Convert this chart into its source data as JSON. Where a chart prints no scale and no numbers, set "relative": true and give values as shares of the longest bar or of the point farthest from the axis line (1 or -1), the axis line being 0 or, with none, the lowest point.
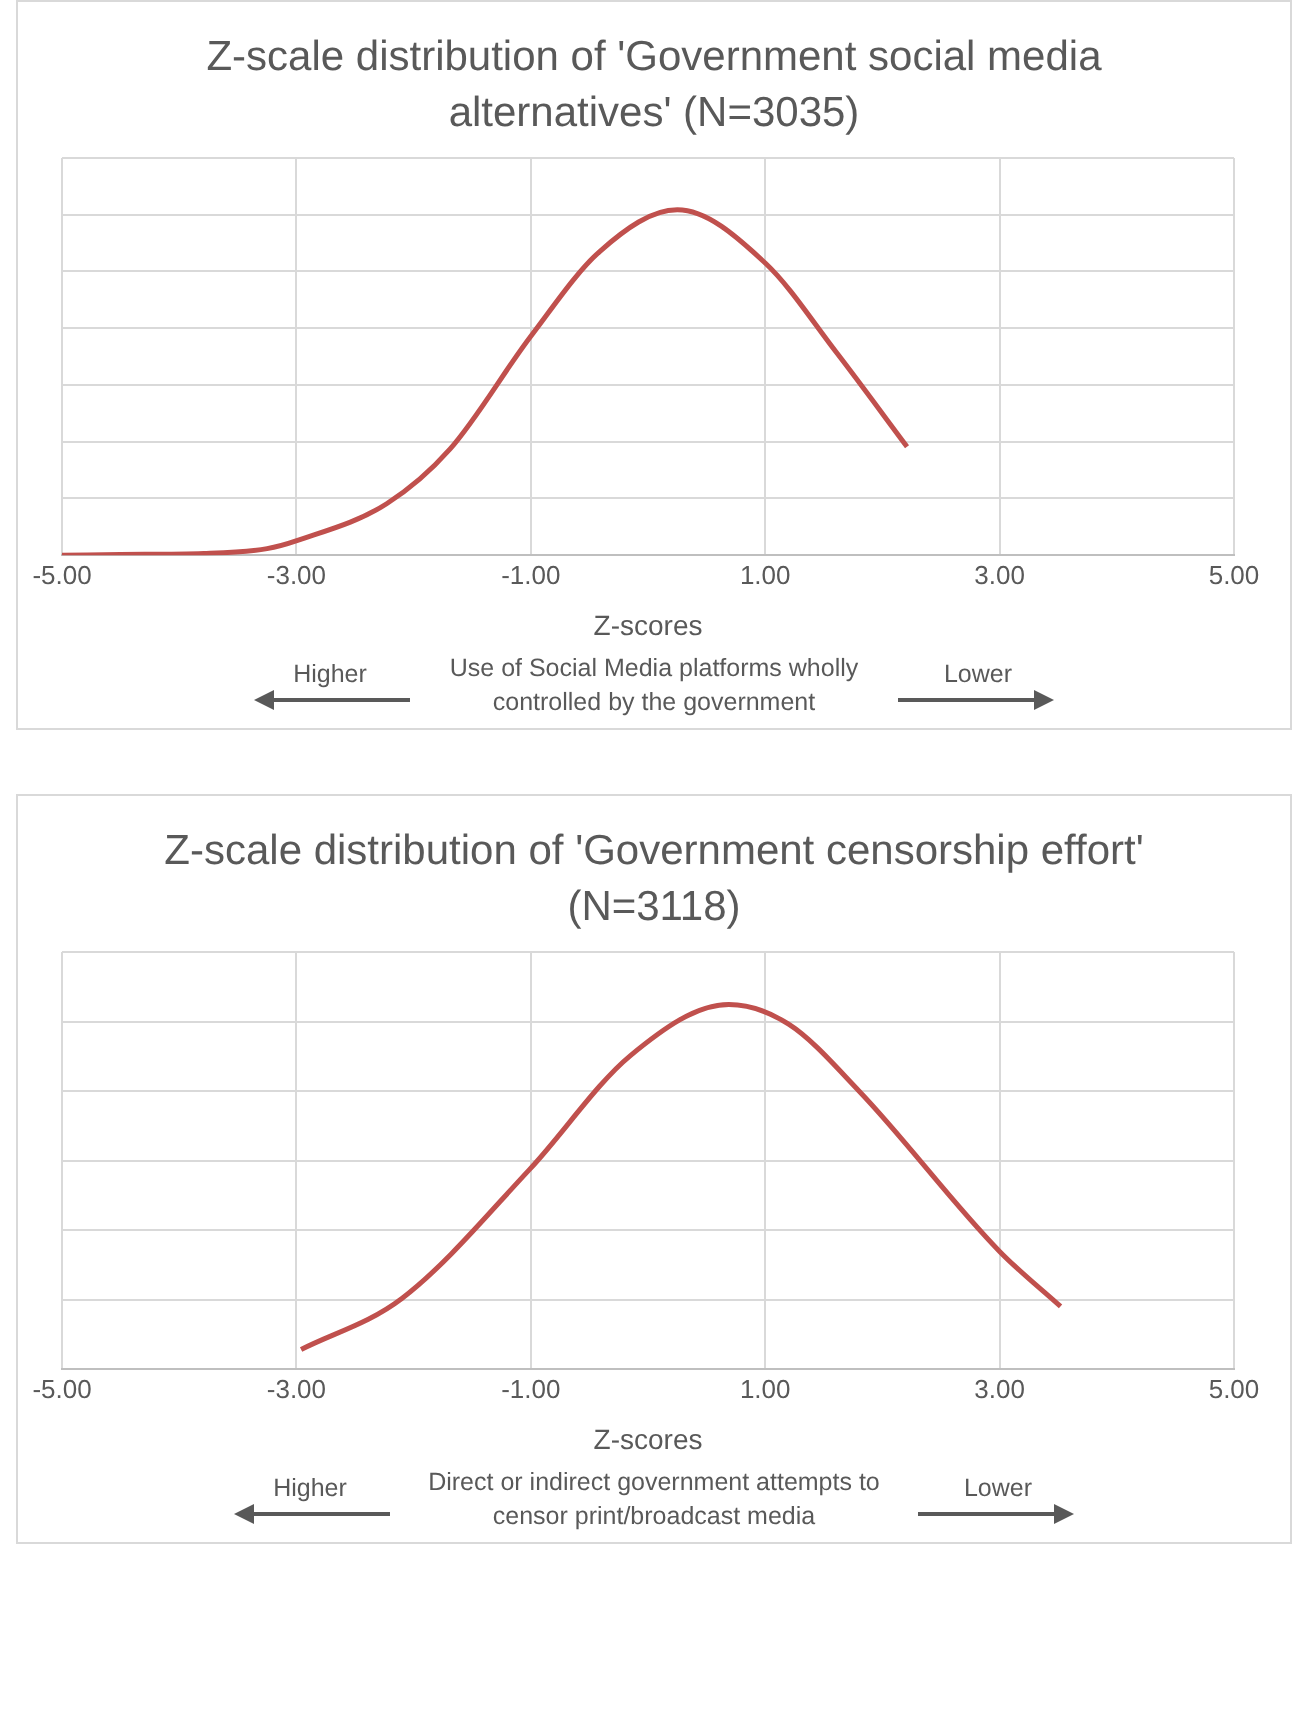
{
  "chart_data": [
    {
      "type": "line",
      "title": "Z-scale distribution of 'Government social media alternatives' (N=3035)",
      "xlabel": "Z-scores",
      "relative": true,
      "grid": true,
      "marker": "none",
      "line_style": "solid",
      "xlim": [
        -5,
        5
      ],
      "xticks": [
        {
          "value": -5,
          "label": "-5.00"
        },
        {
          "value": -3,
          "label": "-3.00"
        },
        {
          "value": -1,
          "label": "-1.00"
        },
        {
          "value": 1,
          "label": "1.00"
        },
        {
          "value": 3,
          "label": "3.00"
        },
        {
          "value": 5,
          "label": "5.00"
        }
      ],
      "series": [
        {
          "color": "#c0504d",
          "x": [
            -5,
            -4.5,
            -3.79,
            -3.25,
            -2.99,
            -2.23,
            -1.69,
            -1,
            -0.41,
            0.25,
            1,
            1.61,
            2.21
          ],
          "values": [
            0,
            0.002,
            0.005,
            0.019,
            0.043,
            0.149,
            0.307,
            0.634,
            0.88,
            1,
            0.846,
            0.586,
            0.314
          ]
        }
      ],
      "annotations": [
        "Higher",
        "Use of Social Media platforms wholly controlled by the government",
        "Lower"
      ]
    },
    {
      "type": "line",
      "title": "Z-scale distribution of 'Government censorship effort' (N=3118)",
      "xlabel": "Z-scores",
      "relative": true,
      "grid": true,
      "marker": "none",
      "line_style": "solid",
      "xlim": [
        -5,
        5
      ],
      "xticks": [
        {
          "value": -5,
          "label": "-5.00"
        },
        {
          "value": -3,
          "label": "-3.00"
        },
        {
          "value": -1,
          "label": "-1.00"
        },
        {
          "value": 1,
          "label": "1.00"
        },
        {
          "value": 3,
          "label": "3.00"
        },
        {
          "value": 5,
          "label": "5.00"
        }
      ],
      "series": [
        {
          "color": "#c0504d",
          "x": [
            -2.96,
            -2.1,
            -1.01,
            -0.15,
            0.69,
            1.2,
            1.8,
            3,
            3.52
          ],
          "values": [
            0.054,
            0.194,
            0.548,
            0.86,
            1,
            0.946,
            0.763,
            0.323,
            0.172
          ]
        }
      ],
      "annotations": [
        "Higher",
        "Direct or indirect government attempts to censor print/broadcast media",
        "Lower"
      ]
    }
  ]
}
